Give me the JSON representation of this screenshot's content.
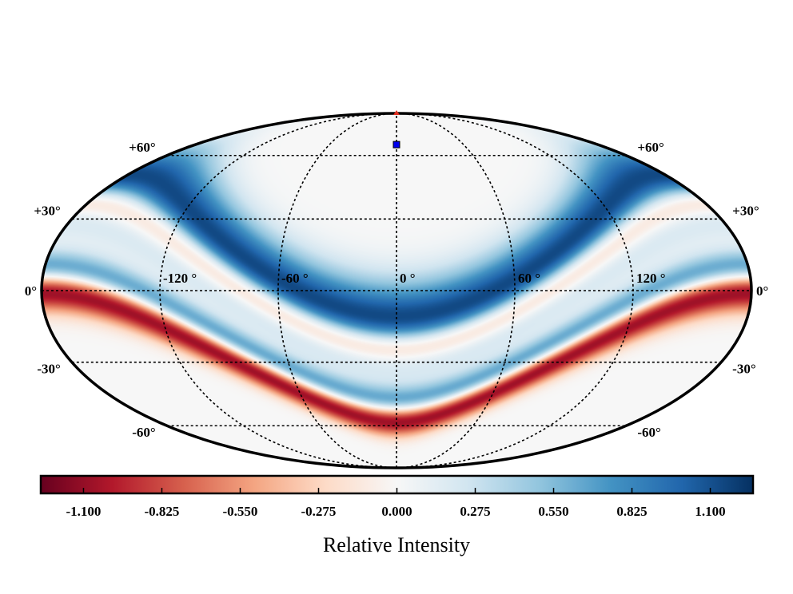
{
  "chart_data": {
    "type": "heatmap",
    "projection": "Mollweide",
    "title": "",
    "colormap": "RdBu",
    "colorbar": {
      "label": "Relative Intensity",
      "range": [
        -1.25,
        1.25
      ],
      "ticks": [
        "-1.100",
        "-0.825",
        "-0.550",
        "-0.275",
        "0.000",
        "0.275",
        "0.550",
        "0.825",
        "1.100"
      ],
      "tick_values": [
        -1.1,
        -0.825,
        -0.55,
        -0.275,
        0.0,
        0.275,
        0.55,
        0.825,
        1.1
      ],
      "placement": "bottom"
    },
    "longitude_labels": [
      "-120 °",
      "-60 °",
      "0 °",
      "60 °",
      "120 °"
    ],
    "longitude_values": [
      -120,
      -60,
      0,
      60,
      120
    ],
    "latitude_labels_left": [
      "+60°",
      "+30°",
      "0°",
      "-30°",
      "-60°"
    ],
    "latitude_labels_right": [
      "+60°",
      "+30°",
      "0°",
      "-30°",
      "-60°"
    ],
    "latitude_values": [
      60,
      30,
      0,
      -30,
      -60
    ],
    "gridlines": true,
    "bands": [
      {
        "name": "blue-band-upper",
        "center_lat_at_lon0": -13,
        "amplitude_deg": 61,
        "width_deg": 12,
        "peak": 1.2
      },
      {
        "name": "red-band-upper",
        "center_lat_at_lon0": -23,
        "amplitude_deg": 61,
        "width_deg": 5,
        "peak": -0.9
      },
      {
        "name": "blue-band-lower",
        "center_lat_at_lon0": -48,
        "amplitude_deg": 57,
        "width_deg": 5,
        "peak": 0.9
      },
      {
        "name": "red-band-lower",
        "center_lat_at_lon0": -57,
        "amplitude_deg": 57,
        "width_deg": 6,
        "peak": -1.2
      }
    ],
    "markers": [
      {
        "name": "north-pole-marker",
        "lon": 0,
        "lat": 90,
        "color": "#e03020",
        "shape": "triangle"
      },
      {
        "name": "source-marker",
        "lon": 0,
        "lat": 66,
        "color": "#0000ee",
        "shape": "square"
      }
    ]
  }
}
